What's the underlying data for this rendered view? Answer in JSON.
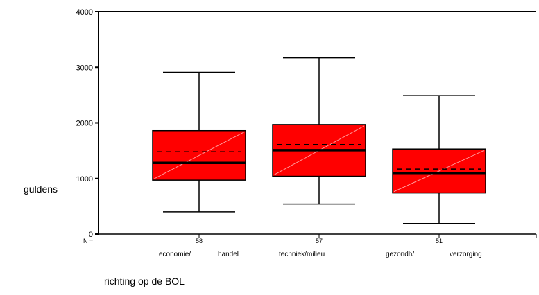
{
  "chart_data": {
    "type": "boxplot",
    "title": "",
    "xlabel": "richting op de BOL",
    "ylabel": "guldens",
    "ylim": [
      0,
      4000
    ],
    "yticks": [
      0,
      1000,
      2000,
      3000,
      4000
    ],
    "n_label": "N =",
    "grid": false,
    "legend": false,
    "box_color": "#ff0000",
    "categories": [
      {
        "label_left": "economie/",
        "label_right": "handel",
        "n": "58",
        "whisker_low": 400,
        "q1": 970,
        "median": 1280,
        "mean": 1480,
        "q3": 1860,
        "whisker_high": 2910
      },
      {
        "label_left": "techniek/milieu",
        "label_right": "",
        "n": "57",
        "whisker_low": 540,
        "q1": 1040,
        "median": 1510,
        "mean": 1610,
        "q3": 1970,
        "whisker_high": 3170
      },
      {
        "label_left": "gezondh/",
        "label_right": "verzorging",
        "n": "51",
        "whisker_low": 190,
        "q1": 740,
        "median": 1100,
        "mean": 1170,
        "q3": 1530,
        "whisker_high": 2490
      }
    ]
  }
}
